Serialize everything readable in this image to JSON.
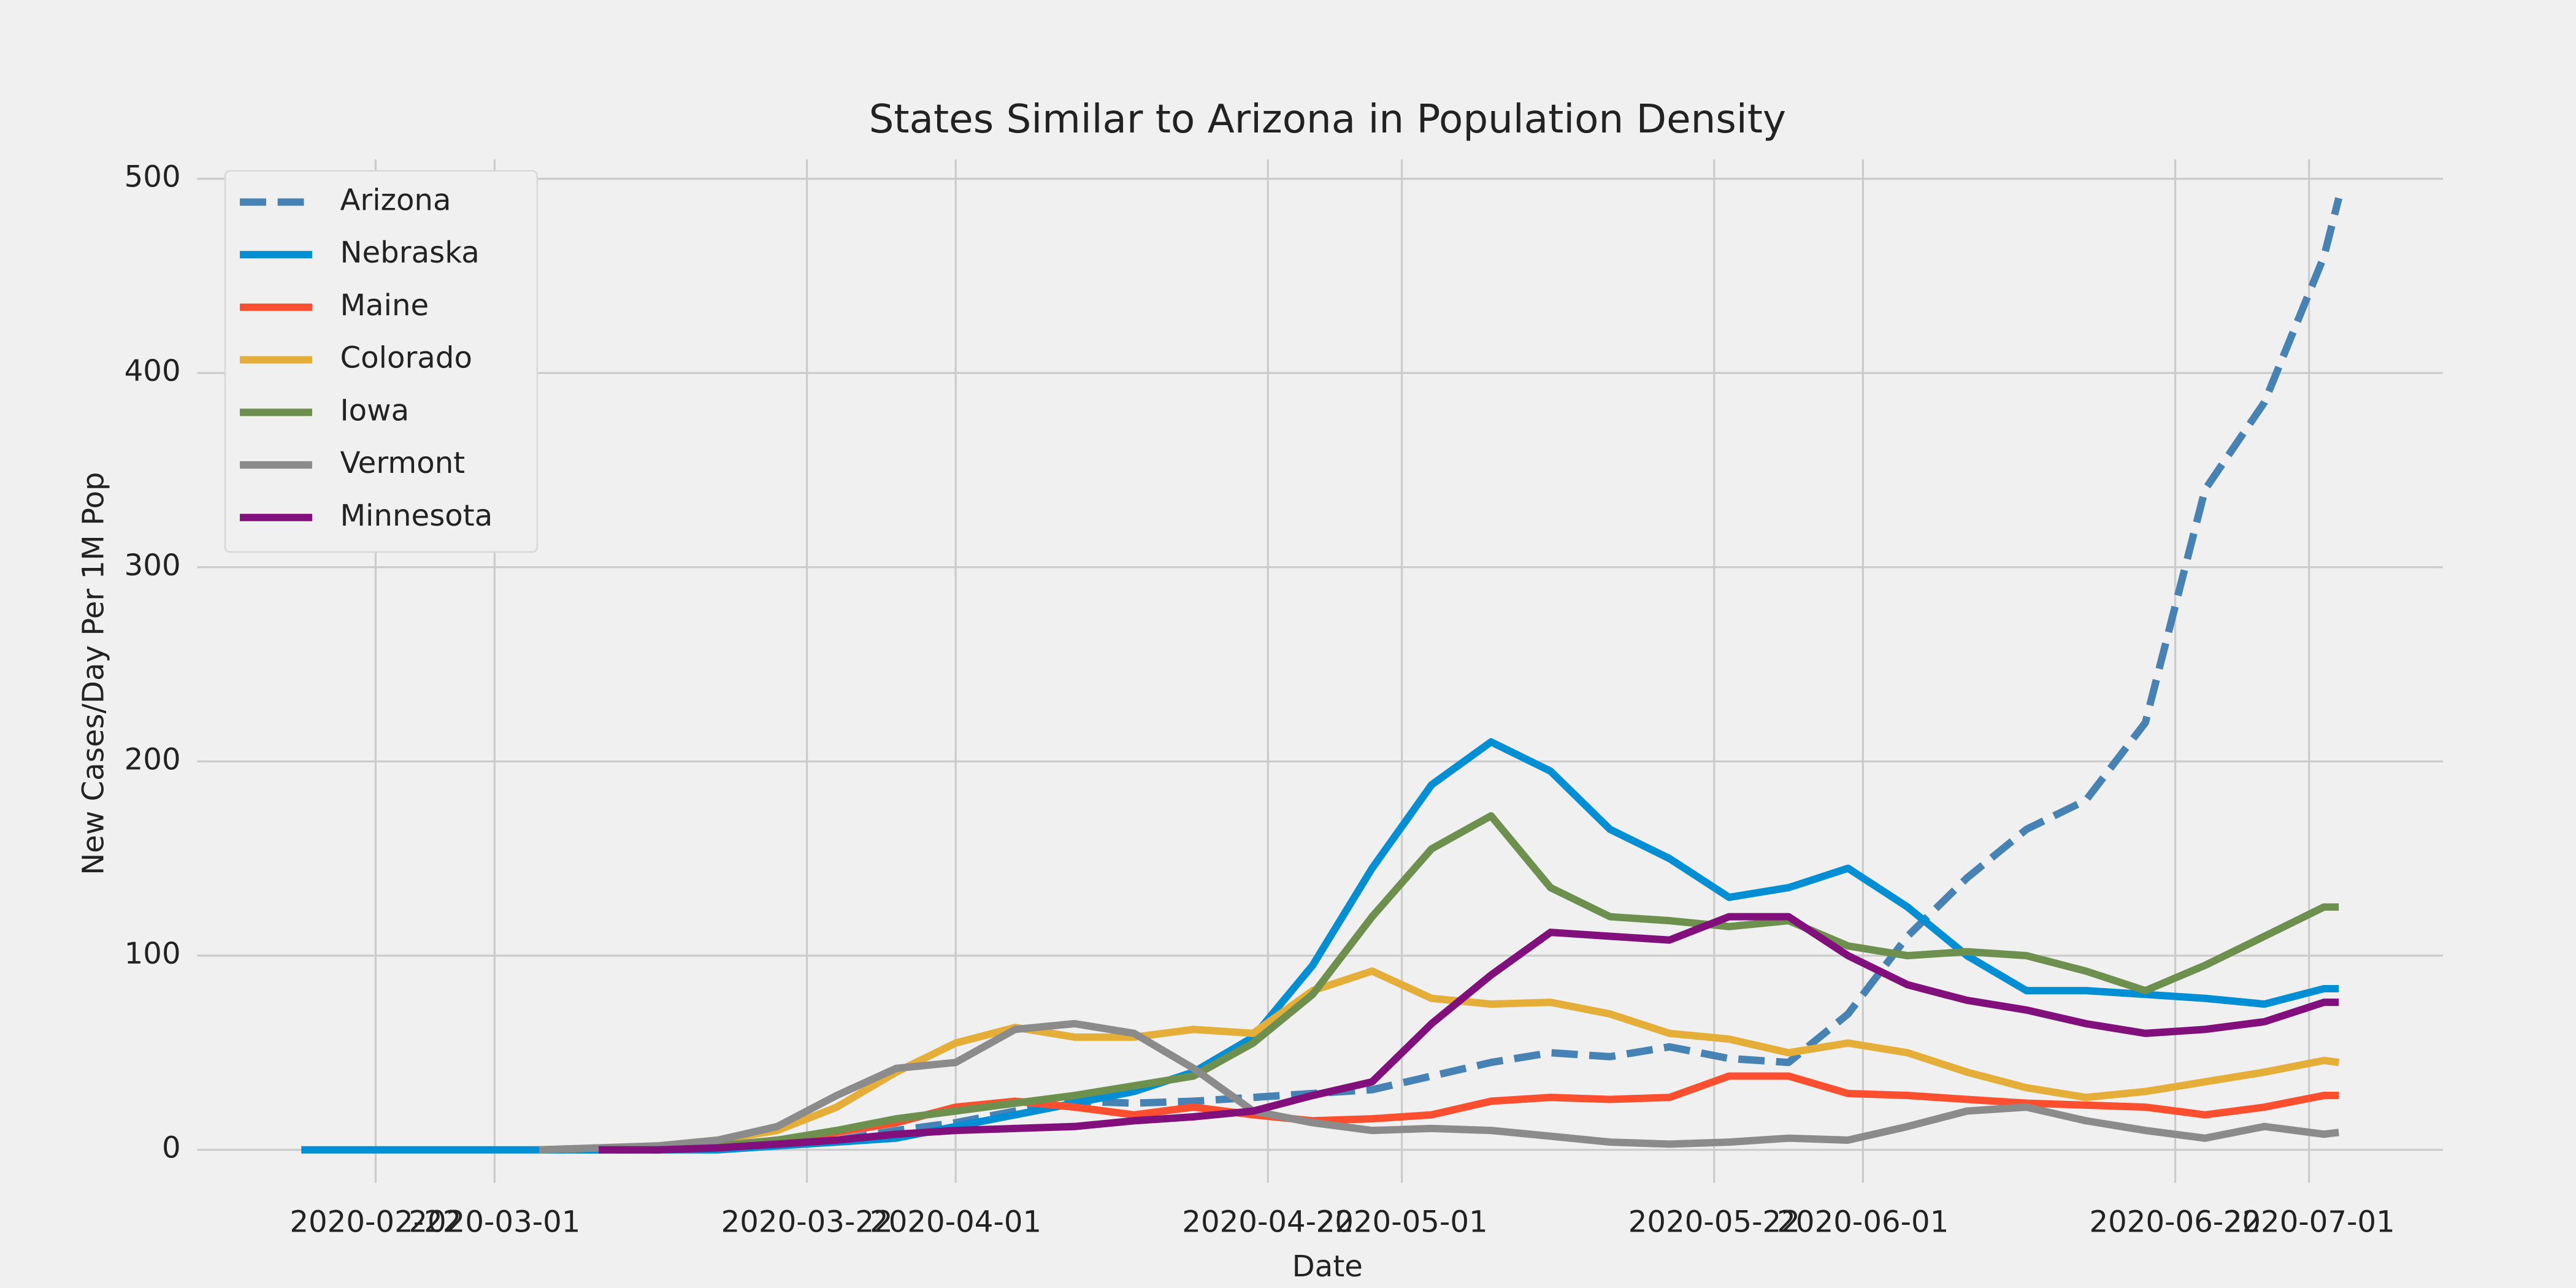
{
  "chart_data": {
    "type": "line",
    "title": "States Similar to Arizona in Population Density",
    "xlabel": "Date",
    "ylabel": "New Cases/Day Per 1M Pop",
    "x": [
      "2020-02-17",
      "2020-02-21",
      "2020-02-25",
      "2020-02-29",
      "2020-03-04",
      "2020-03-08",
      "2020-03-12",
      "2020-03-16",
      "2020-03-20",
      "2020-03-24",
      "2020-03-28",
      "2020-04-01",
      "2020-04-05",
      "2020-04-09",
      "2020-04-13",
      "2020-04-17",
      "2020-04-21",
      "2020-04-25",
      "2020-04-29",
      "2020-05-03",
      "2020-05-07",
      "2020-05-11",
      "2020-05-15",
      "2020-05-19",
      "2020-05-23",
      "2020-05-27",
      "2020-05-31",
      "2020-06-04",
      "2020-06-08",
      "2020-06-12",
      "2020-06-16",
      "2020-06-20",
      "2020-06-24",
      "2020-06-28",
      "2020-07-02",
      "2020-07-03"
    ],
    "series": [
      {
        "name": "Arizona",
        "color": "#4682b4",
        "linestyle": "dashed",
        "values": [
          null,
          null,
          null,
          null,
          0,
          0,
          0,
          1,
          2,
          5,
          10,
          14,
          20,
          25,
          24,
          25,
          27,
          29,
          31,
          38,
          45,
          50,
          48,
          53,
          47,
          45,
          70,
          110,
          140,
          165,
          180,
          220,
          340,
          385,
          460,
          490
        ]
      },
      {
        "name": "Nebraska",
        "color": "#008fd5",
        "linestyle": "solid",
        "values": [
          0,
          0,
          0,
          0,
          0,
          0,
          0,
          0,
          2,
          4,
          6,
          12,
          18,
          24,
          30,
          40,
          58,
          95,
          145,
          188,
          210,
          195,
          165,
          150,
          130,
          135,
          145,
          125,
          100,
          82,
          82,
          80,
          78,
          75,
          83,
          83
        ]
      },
      {
        "name": "Maine",
        "color": "#fc4f30",
        "linestyle": "solid",
        "values": [
          null,
          null,
          null,
          null,
          null,
          null,
          0,
          2,
          5,
          9,
          14,
          22,
          25,
          22,
          18,
          22,
          18,
          15,
          16,
          18,
          25,
          27,
          26,
          27,
          38,
          38,
          29,
          28,
          26,
          24,
          23,
          22,
          18,
          22,
          28,
          28
        ]
      },
      {
        "name": "Colorado",
        "color": "#e5ae38",
        "linestyle": "solid",
        "values": [
          null,
          null,
          null,
          null,
          0,
          1,
          2,
          5,
          10,
          22,
          40,
          55,
          63,
          58,
          58,
          62,
          60,
          82,
          92,
          78,
          75,
          76,
          70,
          60,
          57,
          50,
          55,
          50,
          40,
          32,
          27,
          30,
          35,
          40,
          46,
          45
        ]
      },
      {
        "name": "Iowa",
        "color": "#6d904f",
        "linestyle": "solid",
        "values": [
          null,
          null,
          null,
          null,
          null,
          0,
          1,
          2,
          5,
          10,
          16,
          20,
          24,
          28,
          33,
          38,
          55,
          80,
          120,
          155,
          172,
          135,
          120,
          118,
          115,
          118,
          105,
          100,
          102,
          100,
          92,
          82,
          95,
          110,
          125,
          125
        ]
      },
      {
        "name": "Vermont",
        "color": "#8b8b8b",
        "linestyle": "solid",
        "values": [
          null,
          null,
          null,
          null,
          0,
          1,
          2,
          5,
          12,
          28,
          42,
          45,
          62,
          65,
          60,
          42,
          20,
          14,
          10,
          11,
          10,
          7,
          4,
          3,
          4,
          6,
          5,
          12,
          20,
          22,
          15,
          10,
          6,
          12,
          8,
          9
        ]
      },
      {
        "name": "Minnesota",
        "color": "#810f7c",
        "linestyle": "solid",
        "values": [
          null,
          null,
          null,
          null,
          null,
          0,
          0,
          1,
          3,
          5,
          8,
          10,
          11,
          12,
          15,
          17,
          20,
          28,
          35,
          65,
          90,
          112,
          110,
          108,
          120,
          120,
          100,
          85,
          77,
          72,
          65,
          60,
          62,
          66,
          76,
          76
        ]
      }
    ],
    "xlim": [
      "2020-02-10",
      "2020-07-10"
    ],
    "xticks": [
      "2020-02-22",
      "2020-03-01",
      "2020-03-22",
      "2020-04-01",
      "2020-04-22",
      "2020-05-01",
      "2020-05-22",
      "2020-06-01",
      "2020-06-22",
      "2020-07-01"
    ],
    "ylim": [
      -17,
      510
    ],
    "yticks": [
      0,
      100,
      200,
      300,
      400,
      500
    ],
    "grid": true,
    "legend": "upper left"
  }
}
